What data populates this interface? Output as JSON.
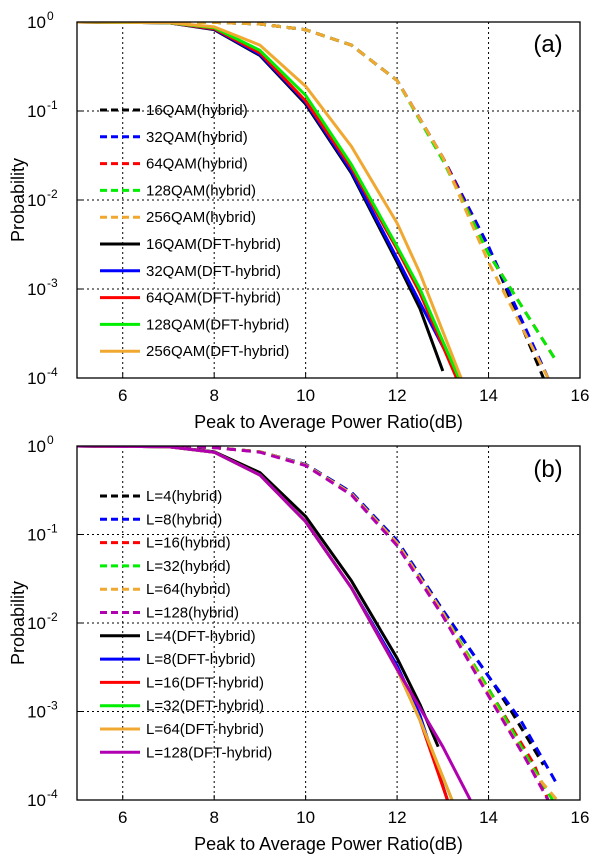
{
  "chart_data": [
    {
      "type": "line",
      "panel_label": "(a)",
      "xlabel": "Peak to Average Power Ratio(dB)",
      "ylabel": "Probability",
      "xlim": [
        5,
        16
      ],
      "ylim": [
        0.0001,
        1
      ],
      "yscale": "log",
      "xticks": [
        "6",
        "8",
        "10",
        "12",
        "14",
        "16"
      ],
      "yticks": [
        {
          "base": "10",
          "exp": "0"
        },
        {
          "base": "10",
          "exp": "-1"
        },
        {
          "base": "10",
          "exp": "-2"
        },
        {
          "base": "10",
          "exp": "-3"
        },
        {
          "base": "10",
          "exp": "-4"
        }
      ],
      "grid": true,
      "legend_position": "left",
      "series": [
        {
          "name": "16QAM(hybrid)",
          "color": "#000000",
          "dash": true,
          "x": [
            5,
            8,
            9,
            10,
            11,
            12,
            13,
            14,
            15.2
          ],
          "y": [
            1,
            0.99,
            0.95,
            0.82,
            0.55,
            0.22,
            0.03,
            0.003,
            0.0001
          ]
        },
        {
          "name": "32QAM(hybrid)",
          "color": "#0000ff",
          "dash": true,
          "x": [
            5,
            8,
            9,
            10,
            11,
            12,
            13,
            14,
            15.3
          ],
          "y": [
            1,
            0.99,
            0.95,
            0.82,
            0.55,
            0.22,
            0.03,
            0.003,
            0.0001
          ]
        },
        {
          "name": "64QAM(hybrid)",
          "color": "#ff0000",
          "dash": true,
          "x": [
            5,
            8,
            9,
            10,
            11,
            12,
            13,
            14,
            15.5
          ],
          "y": [
            1,
            0.99,
            0.95,
            0.82,
            0.55,
            0.22,
            0.03,
            0.0025,
            0.00015
          ]
        },
        {
          "name": "128QAM(hybrid)",
          "color": "#00ee00",
          "dash": true,
          "x": [
            5,
            8,
            9,
            10,
            11,
            12,
            13,
            14,
            15.5
          ],
          "y": [
            1,
            0.99,
            0.95,
            0.82,
            0.55,
            0.22,
            0.028,
            0.0025,
            0.00015
          ]
        },
        {
          "name": "256QAM(hybrid)",
          "color": "#f0a830",
          "dash": true,
          "x": [
            5,
            8,
            9,
            10,
            11,
            12,
            13,
            14,
            15.3
          ],
          "y": [
            1,
            0.99,
            0.95,
            0.82,
            0.55,
            0.22,
            0.03,
            0.002,
            0.0001
          ]
        },
        {
          "name": "16QAM(DFT-hybrid)",
          "color": "#000000",
          "dash": false,
          "x": [
            5,
            7,
            8,
            9,
            10,
            11,
            12,
            12.5,
            13
          ],
          "y": [
            1,
            0.98,
            0.82,
            0.42,
            0.12,
            0.02,
            0.002,
            0.0006,
            0.00012
          ]
        },
        {
          "name": "32QAM(DFT-hybrid)",
          "color": "#0000ff",
          "dash": false,
          "x": [
            5,
            7,
            8,
            9,
            10,
            11,
            12,
            12.5,
            13.1
          ],
          "y": [
            1,
            0.98,
            0.83,
            0.43,
            0.125,
            0.021,
            0.0022,
            0.0007,
            0.00018
          ]
        },
        {
          "name": "64QAM(DFT-hybrid)",
          "color": "#ff0000",
          "dash": false,
          "x": [
            5,
            7,
            8,
            9,
            10,
            11,
            12,
            12.5,
            13.3
          ],
          "y": [
            1,
            0.98,
            0.84,
            0.45,
            0.13,
            0.023,
            0.0028,
            0.0009,
            0.0001
          ]
        },
        {
          "name": "128QAM(DFT-hybrid)",
          "color": "#00ee00",
          "dash": false,
          "x": [
            5,
            7,
            8,
            9,
            10,
            11,
            12,
            12.5,
            13.35
          ],
          "y": [
            1,
            0.98,
            0.86,
            0.48,
            0.15,
            0.025,
            0.003,
            0.001,
            0.0001
          ]
        },
        {
          "name": "256QAM(DFT-hybrid)",
          "color": "#f0a830",
          "dash": false,
          "x": [
            5,
            7,
            8,
            9,
            10,
            11,
            12,
            12.5,
            13.4
          ],
          "y": [
            1,
            0.985,
            0.88,
            0.55,
            0.19,
            0.04,
            0.0055,
            0.0015,
            0.0001
          ]
        }
      ]
    },
    {
      "type": "line",
      "panel_label": "(b)",
      "xlabel": "Peak to Average Power Ratio(dB)",
      "ylabel": "Probability",
      "xlim": [
        5,
        16
      ],
      "ylim": [
        0.0001,
        1
      ],
      "yscale": "log",
      "xticks": [
        "6",
        "8",
        "10",
        "12",
        "14",
        "16"
      ],
      "yticks": [
        {
          "base": "10",
          "exp": "0"
        },
        {
          "base": "10",
          "exp": "-1"
        },
        {
          "base": "10",
          "exp": "-2"
        },
        {
          "base": "10",
          "exp": "-3"
        },
        {
          "base": "10",
          "exp": "-4"
        }
      ],
      "grid": true,
      "legend_position": "left",
      "series": [
        {
          "name": "L=4(hybrid)",
          "color": "#000000",
          "dash": true,
          "x": [
            5,
            7,
            8,
            9,
            10,
            11,
            12,
            13,
            14,
            14.5,
            15.2
          ],
          "y": [
            1,
            0.99,
            0.96,
            0.86,
            0.62,
            0.3,
            0.085,
            0.014,
            0.0025,
            0.001,
            0.00025
          ]
        },
        {
          "name": "L=8(hybrid)",
          "color": "#0000ff",
          "dash": true,
          "x": [
            5,
            7,
            8,
            9,
            10,
            11,
            12,
            13,
            14,
            14.7,
            15.5
          ],
          "y": [
            1,
            0.99,
            0.96,
            0.86,
            0.62,
            0.3,
            0.085,
            0.014,
            0.0025,
            0.0008,
            0.00015
          ]
        },
        {
          "name": "L=16(hybrid)",
          "color": "#ff0000",
          "dash": true,
          "x": [
            5,
            7,
            8,
            9,
            10,
            11,
            12,
            13,
            14,
            15,
            15.3
          ],
          "y": [
            1,
            0.99,
            0.96,
            0.86,
            0.61,
            0.29,
            0.08,
            0.013,
            0.0018,
            0.00025,
            0.0001
          ]
        },
        {
          "name": "L=32(hybrid)",
          "color": "#00ee00",
          "dash": true,
          "x": [
            5,
            7,
            8,
            9,
            10,
            11,
            12,
            13,
            14,
            15,
            15.4
          ],
          "y": [
            1,
            0.99,
            0.96,
            0.86,
            0.61,
            0.29,
            0.08,
            0.013,
            0.0018,
            0.00022,
            0.0001
          ]
        },
        {
          "name": "L=64(hybrid)",
          "color": "#f0a830",
          "dash": true,
          "x": [
            5,
            7,
            8,
            9,
            10,
            11,
            12,
            13,
            14,
            15,
            15.5
          ],
          "y": [
            1,
            0.99,
            0.96,
            0.86,
            0.61,
            0.29,
            0.08,
            0.013,
            0.0016,
            0.0002,
            0.0001
          ]
        },
        {
          "name": "L=128(hybrid)",
          "color": "#b000b0",
          "dash": true,
          "x": [
            5,
            7,
            8,
            9,
            10,
            11,
            12,
            13,
            14,
            14.8,
            15.3
          ],
          "y": [
            1,
            0.99,
            0.96,
            0.85,
            0.6,
            0.28,
            0.075,
            0.012,
            0.0015,
            0.0003,
            0.0001
          ]
        },
        {
          "name": "L=4(DFT-hybrid)",
          "color": "#000000",
          "dash": false,
          "x": [
            5,
            7,
            8,
            9,
            10,
            11,
            12,
            12.5,
            12.9
          ],
          "y": [
            1,
            0.98,
            0.86,
            0.5,
            0.16,
            0.03,
            0.004,
            0.0012,
            0.0004
          ]
        },
        {
          "name": "L=8(DFT-hybrid)",
          "color": "#0000ff",
          "dash": false,
          "x": [
            5,
            7,
            8,
            9,
            10,
            11,
            12,
            12.5,
            13.1
          ],
          "y": [
            1,
            0.98,
            0.85,
            0.47,
            0.14,
            0.025,
            0.0033,
            0.0009,
            0.0001
          ]
        },
        {
          "name": "L=16(DFT-hybrid)",
          "color": "#ff0000",
          "dash": false,
          "x": [
            5,
            7,
            8,
            9,
            10,
            11,
            12,
            12.5,
            13.1
          ],
          "y": [
            1,
            0.98,
            0.85,
            0.47,
            0.14,
            0.025,
            0.003,
            0.0008,
            0.0001
          ]
        },
        {
          "name": "L=32(DFT-hybrid)",
          "color": "#00ee00",
          "dash": false,
          "x": [
            5,
            7,
            8,
            9,
            10,
            11,
            12,
            12.5,
            13.2
          ],
          "y": [
            1,
            0.98,
            0.85,
            0.47,
            0.14,
            0.025,
            0.003,
            0.0008,
            0.0001
          ]
        },
        {
          "name": "L=64(DFT-hybrid)",
          "color": "#f0a830",
          "dash": false,
          "x": [
            5,
            7,
            8,
            9,
            10,
            11,
            12,
            12.5,
            13.2
          ],
          "y": [
            1,
            0.98,
            0.85,
            0.47,
            0.14,
            0.025,
            0.003,
            0.0008,
            0.0001
          ]
        },
        {
          "name": "L=128(DFT-hybrid)",
          "color": "#b000b0",
          "dash": false,
          "x": [
            5,
            7,
            8,
            9,
            10,
            11,
            12,
            13,
            13.6
          ],
          "y": [
            1,
            0.98,
            0.85,
            0.47,
            0.14,
            0.025,
            0.003,
            0.0004,
            0.0001
          ]
        }
      ]
    }
  ]
}
